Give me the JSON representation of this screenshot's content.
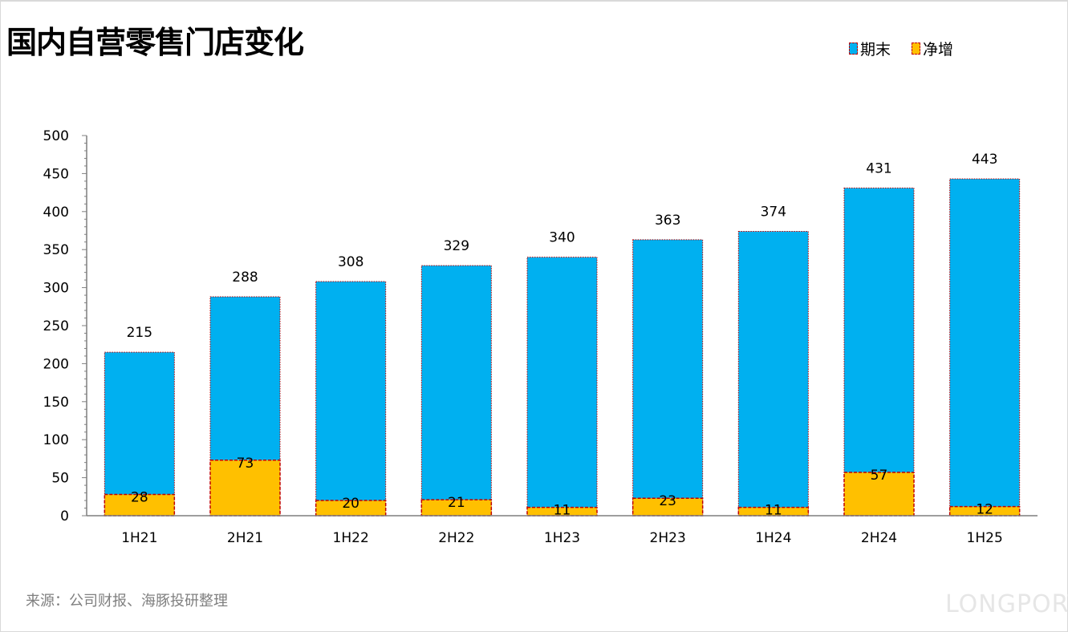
{
  "chart_data": {
    "type": "bar",
    "title": "国内自营零售门店变化",
    "categories": [
      "1H21",
      "2H21",
      "1H22",
      "2H22",
      "1H23",
      "2H23",
      "1H24",
      "2H24",
      "1H25"
    ],
    "series": [
      {
        "name": "期末",
        "values": [
          215,
          288,
          308,
          329,
          340,
          363,
          374,
          431,
          443
        ],
        "color": "#00b0f0"
      },
      {
        "name": "净增",
        "values": [
          28,
          73,
          20,
          21,
          11,
          23,
          11,
          57,
          12
        ],
        "color": "#ffc000"
      }
    ],
    "ylim": [
      0,
      500
    ],
    "yticks": [
      0,
      50,
      100,
      150,
      200,
      250,
      300,
      350,
      400,
      450,
      500
    ],
    "xlabel": "",
    "ylabel": "",
    "grid": false,
    "legend": "top-right",
    "bar_mode": "overlapping",
    "border_color": "#c00000"
  },
  "source": "来源：公司财报、海豚投研整理",
  "watermark": "LONGPORT"
}
